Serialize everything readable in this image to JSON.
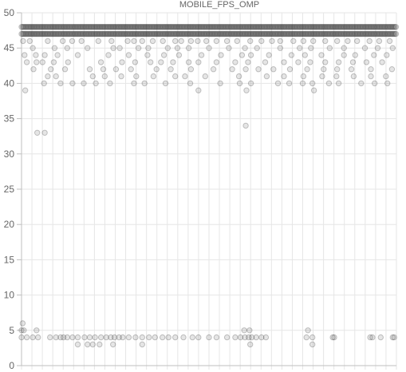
{
  "chart_data": {
    "type": "scatter",
    "title": "MOBILE_FPS_OMP",
    "xlabel": "",
    "ylabel": "",
    "ylim": [
      0,
      50
    ],
    "y_ticks": [
      "0",
      "5",
      "10",
      "15",
      "20",
      "25",
      "30",
      "35",
      "40",
      "45",
      "50"
    ],
    "x_grid_count": 36,
    "x_range": [
      0,
      1000
    ],
    "grid": true,
    "legend": "none",
    "point_color": "#000000",
    "series": [
      {
        "dense_levels": [
          {
            "y": 48,
            "x_start": 0,
            "x_end": 1000,
            "step": 3
          },
          {
            "y": 47,
            "x_start": 0,
            "x_end": 1000,
            "step": 3
          }
        ],
        "sparse_levels": [
          {
            "y": 46,
            "x": [
              4,
              22,
              70,
              110,
              135,
              160,
              205,
              240,
              283,
              300,
              322,
              350,
              377,
              410,
              426,
              452,
              470,
              493,
              520,
              548,
              575,
              610,
              640,
              668,
              690,
              725,
              752,
              778,
              810,
              842,
              870,
              895,
              928,
              954,
              982
            ]
          },
          {
            "y": 45,
            "x": [
              30,
              88,
              122,
              176,
              245,
              262,
              312,
              338,
              390,
              416,
              446,
              500,
              553,
              596,
              628,
              690,
              742,
              772,
              822,
              860,
              916,
              950,
              990
            ]
          },
          {
            "y": 44,
            "x": [
              8,
              38,
              62,
              96,
              150,
              232,
              286,
              336,
              380,
              420,
              480,
              532,
              588,
              612,
              660,
              720,
              756,
              800,
              860,
              890,
              940,
              974
            ]
          },
          {
            "y": 43,
            "x": [
              14,
              40,
              56,
              86,
              124,
              212,
              268,
              303,
              344,
              372,
              404,
              446,
              472,
              520,
              570,
              604,
              650,
              700,
              738,
              770,
              810,
              846,
              884,
              920,
              962
            ]
          },
          {
            "y": 42,
            "x": [
              32,
              78,
              116,
              182,
              218,
              252,
              292,
              360,
              398,
              452,
              512,
              562,
              598,
              632,
              672,
              716,
              762,
              806,
              842,
              880,
              932,
              988
            ]
          },
          {
            "y": 41,
            "x": [
              70,
              92,
              190,
              222,
              266,
              306,
              352,
              410,
              436,
              490,
              580,
              654,
              700,
              752,
              802,
              840,
              886,
              932,
              972
            ]
          },
          {
            "y": 40,
            "x": [
              60,
              104,
              136,
              166,
              198,
              236,
              300,
              328,
              384,
              450,
              530,
              582,
              612,
              684,
              714,
              750,
              776,
              820,
              846,
              906,
              942,
              976
            ]
          },
          {
            "y": 39,
            "x": [
              10,
              472,
              600,
              780
            ]
          },
          {
            "y": 34,
            "x": [
              598
            ]
          },
          {
            "y": 33,
            "x": [
              42,
              62
            ]
          },
          {
            "y": 6,
            "x": [
              3
            ]
          },
          {
            "y": 5,
            "x": [
              0,
              6,
              40,
              594,
              608,
              764
            ]
          },
          {
            "y": 4,
            "x": [
              0,
              14,
              30,
              44,
              76,
              92,
              104,
              112,
              122,
              136,
              150,
              168,
              182,
              196,
              212,
              226,
              238,
              248,
              260,
              270,
              286,
              304,
              322,
              340,
              356,
              376,
              392,
              410,
              432,
              456,
              472,
              500,
              520,
              548,
              570,
              584,
              596,
              606,
              614,
              626,
              640,
              652,
              760,
              776,
              830,
              834,
              930,
              936,
              958,
              990,
              994
            ]
          },
          {
            "y": 3,
            "x": [
              150,
              176,
              190,
              208,
              244,
              322,
              610,
              776
            ]
          }
        ]
      }
    ]
  }
}
